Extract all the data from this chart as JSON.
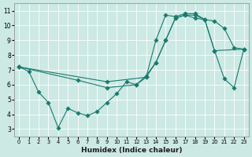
{
  "xlabel": "Humidex (Indice chaleur)",
  "bg_color": "#cce9e4",
  "line_color": "#1a7a6e",
  "xlim": [
    -0.5,
    23.5
  ],
  "ylim": [
    2.5,
    11.5
  ],
  "xticks": [
    0,
    1,
    2,
    3,
    4,
    5,
    6,
    7,
    8,
    9,
    10,
    11,
    12,
    13,
    14,
    15,
    16,
    17,
    18,
    19,
    20,
    21,
    22,
    23
  ],
  "yticks": [
    3,
    4,
    5,
    6,
    7,
    8,
    9,
    10,
    11
  ],
  "line1_x": [
    0,
    1,
    2,
    3,
    4,
    5,
    6,
    7,
    8,
    9,
    10,
    11,
    12,
    13,
    14,
    15,
    16,
    17,
    18,
    19,
    20,
    21,
    22,
    23
  ],
  "line1_y": [
    7.2,
    6.9,
    5.5,
    4.8,
    3.1,
    4.4,
    4.1,
    3.9,
    4.2,
    4.8,
    5.4,
    6.2,
    6.0,
    6.6,
    7.5,
    9.0,
    10.5,
    10.7,
    10.7,
    10.4,
    10.3,
    9.8,
    8.5,
    8.4
  ],
  "line2_x": [
    0,
    9,
    13,
    14,
    15,
    16,
    17,
    18,
    19,
    20,
    21,
    22,
    23
  ],
  "line2_y": [
    7.2,
    6.2,
    6.5,
    7.5,
    9.0,
    10.5,
    10.7,
    10.5,
    10.4,
    8.3,
    6.4,
    5.8,
    8.4
  ],
  "line3_x": [
    0,
    6,
    9,
    12,
    13,
    14,
    15,
    16,
    17,
    18,
    19,
    20,
    23
  ],
  "line3_y": [
    7.2,
    6.3,
    5.8,
    6.0,
    6.5,
    9.0,
    10.7,
    10.6,
    10.8,
    10.8,
    10.4,
    8.3,
    8.4
  ]
}
